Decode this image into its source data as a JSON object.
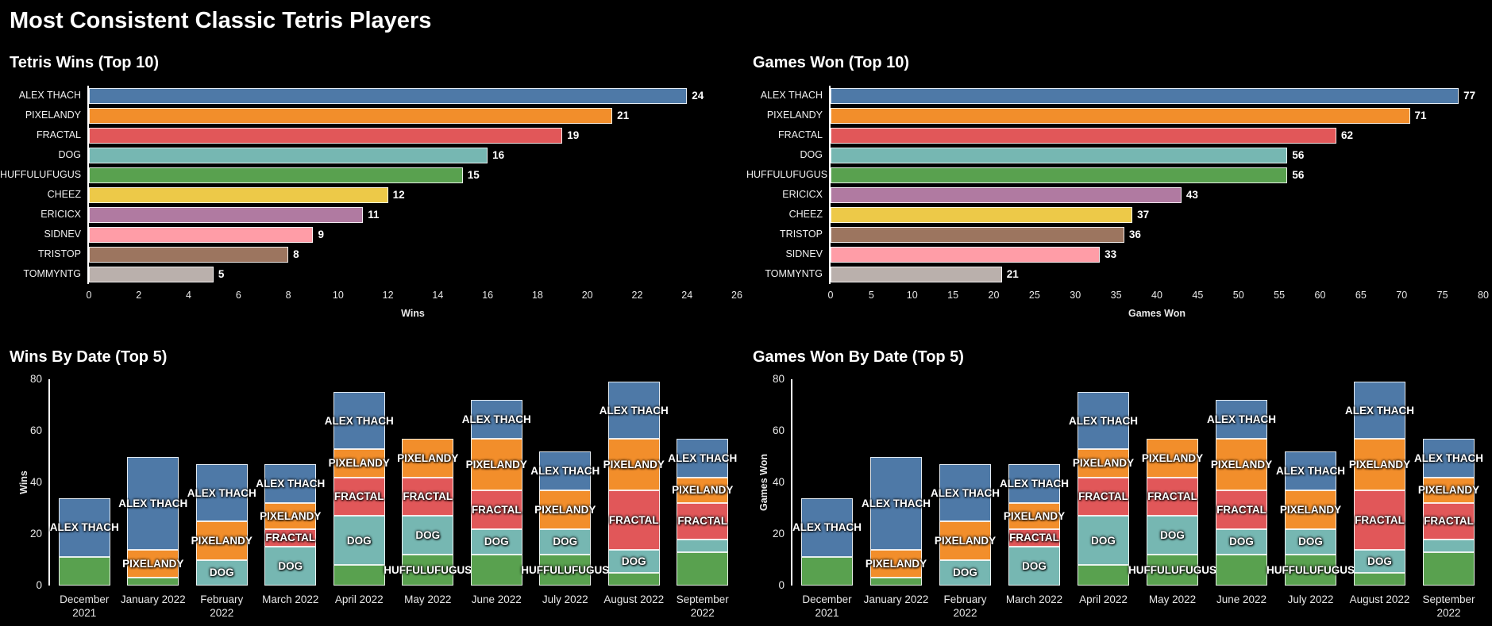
{
  "title": "Most Consistent Classic Tetris Players",
  "colors": {
    "ALEX THACH": "#4e79a7",
    "PIXELANDY": "#f28e2b",
    "FRACTAL": "#e15759",
    "DOG": "#76b7b2",
    "HUFFULUFUGUS": "#59a14f",
    "CHEEZ": "#edc948",
    "ERICICX": "#b07aa1",
    "SIDNEV": "#ff9da7",
    "TRISTOP": "#9c755f",
    "TOMMYNTG": "#bab0ac"
  },
  "chart_data": [
    {
      "id": "tetris-wins-top10",
      "type": "bar",
      "orientation": "horizontal",
      "title": "Tetris Wins (Top 10)",
      "xlabel": "Wins",
      "xlim": [
        0,
        26
      ],
      "xticks": [
        0,
        2,
        4,
        6,
        8,
        10,
        12,
        14,
        16,
        18,
        20,
        22,
        24,
        26
      ],
      "categories": [
        "ALEX THACH",
        "PIXELANDY",
        "FRACTAL",
        "DOG",
        "HUFFULUFUGUS",
        "CHEEZ",
        "ERICICX",
        "SIDNEV",
        "TRISTOP",
        "TOMMYNTG"
      ],
      "values": [
        24,
        21,
        19,
        16,
        15,
        12,
        11,
        9,
        8,
        5
      ]
    },
    {
      "id": "games-won-top10",
      "type": "bar",
      "orientation": "horizontal",
      "title": "Games Won (Top 10)",
      "xlabel": "Games Won",
      "xlim": [
        0,
        80
      ],
      "xticks": [
        0,
        5,
        10,
        15,
        20,
        25,
        30,
        35,
        40,
        45,
        50,
        55,
        60,
        65,
        70,
        75,
        80
      ],
      "categories": [
        "ALEX THACH",
        "PIXELANDY",
        "FRACTAL",
        "DOG",
        "HUFFULUFUGUS",
        "ERICICX",
        "CHEEZ",
        "TRISTOP",
        "SIDNEV",
        "TOMMYNTG"
      ],
      "values": [
        77,
        71,
        62,
        56,
        56,
        43,
        37,
        36,
        33,
        21
      ]
    },
    {
      "id": "wins-by-date-top5",
      "type": "bar",
      "stacked": true,
      "title": "Wins By Date (Top 5)",
      "ylabel": "Wins",
      "ylim": [
        0,
        80
      ],
      "yticks": [
        0,
        20,
        40,
        60,
        80
      ],
      "categories": [
        "December\n2021",
        "January 2022",
        "February 2022",
        "March 2022",
        "April 2022",
        "May 2022",
        "June 2022",
        "July 2022",
        "August 2022",
        "September\n2022"
      ],
      "stacks": [
        [
          {
            "player": "HUFFULUFUGUS",
            "value": 11,
            "label": false
          },
          {
            "player": "ALEX THACH",
            "value": 23,
            "label": true
          }
        ],
        [
          {
            "player": "HUFFULUFUGUS",
            "value": 3,
            "label": false
          },
          {
            "player": "PIXELANDY",
            "value": 11,
            "label": true
          },
          {
            "player": "ALEX THACH",
            "value": 36,
            "label": true
          }
        ],
        [
          {
            "player": "DOG",
            "value": 10,
            "label": true
          },
          {
            "player": "PIXELANDY",
            "value": 15,
            "label": true
          },
          {
            "player": "ALEX THACH",
            "value": 22,
            "label": true
          }
        ],
        [
          {
            "player": "DOG",
            "value": 15,
            "label": true
          },
          {
            "player": "FRACTAL",
            "value": 7,
            "label": true
          },
          {
            "player": "PIXELANDY",
            "value": 10,
            "label": true
          },
          {
            "player": "ALEX THACH",
            "value": 15,
            "label": true
          }
        ],
        [
          {
            "player": "HUFFULUFUGUS",
            "value": 8,
            "label": false
          },
          {
            "player": "DOG",
            "value": 19,
            "label": true
          },
          {
            "player": "FRACTAL",
            "value": 15,
            "label": true
          },
          {
            "player": "PIXELANDY",
            "value": 11,
            "label": true
          },
          {
            "player": "ALEX THACH",
            "value": 22,
            "label": true
          }
        ],
        [
          {
            "player": "HUFFULUFUGUS",
            "value": 12,
            "label": true
          },
          {
            "player": "DOG",
            "value": 15,
            "label": true
          },
          {
            "player": "FRACTAL",
            "value": 15,
            "label": true
          },
          {
            "player": "PIXELANDY",
            "value": 15,
            "label": true
          }
        ],
        [
          {
            "player": "HUFFULUFUGUS",
            "value": 12,
            "label": false
          },
          {
            "player": "DOG",
            "value": 10,
            "label": true
          },
          {
            "player": "FRACTAL",
            "value": 15,
            "label": true
          },
          {
            "player": "PIXELANDY",
            "value": 20,
            "label": true
          },
          {
            "player": "ALEX THACH",
            "value": 15,
            "label": true
          }
        ],
        [
          {
            "player": "HUFFULUFUGUS",
            "value": 12,
            "label": true
          },
          {
            "player": "DOG",
            "value": 10,
            "label": true
          },
          {
            "player": "PIXELANDY",
            "value": 15,
            "label": true
          },
          {
            "player": "ALEX THACH",
            "value": 15,
            "label": true
          }
        ],
        [
          {
            "player": "HUFFULUFUGUS",
            "value": 5,
            "label": false
          },
          {
            "player": "DOG",
            "value": 9,
            "label": true
          },
          {
            "player": "FRACTAL",
            "value": 23,
            "label": true
          },
          {
            "player": "PIXELANDY",
            "value": 20,
            "label": true
          },
          {
            "player": "ALEX THACH",
            "value": 22,
            "label": true
          }
        ],
        [
          {
            "player": "HUFFULUFUGUS",
            "value": 13,
            "label": false
          },
          {
            "player": "DOG",
            "value": 5,
            "label": false
          },
          {
            "player": "FRACTAL",
            "value": 14,
            "label": true
          },
          {
            "player": "PIXELANDY",
            "value": 10,
            "label": true
          },
          {
            "player": "ALEX THACH",
            "value": 15,
            "label": true
          }
        ]
      ]
    },
    {
      "id": "games-won-by-date-top5",
      "type": "bar",
      "stacked": true,
      "title": "Games Won By Date (Top 5)",
      "ylabel": "Games Won",
      "ylim": [
        0,
        80
      ],
      "yticks": [
        0,
        20,
        40,
        60,
        80
      ],
      "categories": [
        "December\n2021",
        "January 2022",
        "February 2022",
        "March 2022",
        "April 2022",
        "May 2022",
        "June 2022",
        "July 2022",
        "August 2022",
        "September\n2022"
      ],
      "stacks": [
        [
          {
            "player": "HUFFULUFUGUS",
            "value": 11,
            "label": false
          },
          {
            "player": "ALEX THACH",
            "value": 23,
            "label": true
          }
        ],
        [
          {
            "player": "HUFFULUFUGUS",
            "value": 3,
            "label": false
          },
          {
            "player": "PIXELANDY",
            "value": 11,
            "label": true
          },
          {
            "player": "ALEX THACH",
            "value": 36,
            "label": true
          }
        ],
        [
          {
            "player": "DOG",
            "value": 10,
            "label": true
          },
          {
            "player": "PIXELANDY",
            "value": 15,
            "label": true
          },
          {
            "player": "ALEX THACH",
            "value": 22,
            "label": true
          }
        ],
        [
          {
            "player": "DOG",
            "value": 15,
            "label": true
          },
          {
            "player": "FRACTAL",
            "value": 7,
            "label": true
          },
          {
            "player": "PIXELANDY",
            "value": 10,
            "label": true
          },
          {
            "player": "ALEX THACH",
            "value": 15,
            "label": true
          }
        ],
        [
          {
            "player": "HUFFULUFUGUS",
            "value": 8,
            "label": false
          },
          {
            "player": "DOG",
            "value": 19,
            "label": true
          },
          {
            "player": "FRACTAL",
            "value": 15,
            "label": true
          },
          {
            "player": "PIXELANDY",
            "value": 11,
            "label": true
          },
          {
            "player": "ALEX THACH",
            "value": 22,
            "label": true
          }
        ],
        [
          {
            "player": "HUFFULUFUGUS",
            "value": 12,
            "label": true
          },
          {
            "player": "DOG",
            "value": 15,
            "label": true
          },
          {
            "player": "FRACTAL",
            "value": 15,
            "label": true
          },
          {
            "player": "PIXELANDY",
            "value": 15,
            "label": true
          }
        ],
        [
          {
            "player": "HUFFULUFUGUS",
            "value": 12,
            "label": false
          },
          {
            "player": "DOG",
            "value": 10,
            "label": true
          },
          {
            "player": "FRACTAL",
            "value": 15,
            "label": true
          },
          {
            "player": "PIXELANDY",
            "value": 20,
            "label": true
          },
          {
            "player": "ALEX THACH",
            "value": 15,
            "label": true
          }
        ],
        [
          {
            "player": "HUFFULUFUGUS",
            "value": 12,
            "label": true
          },
          {
            "player": "DOG",
            "value": 10,
            "label": true
          },
          {
            "player": "PIXELANDY",
            "value": 15,
            "label": true
          },
          {
            "player": "ALEX THACH",
            "value": 15,
            "label": true
          }
        ],
        [
          {
            "player": "HUFFULUFUGUS",
            "value": 5,
            "label": false
          },
          {
            "player": "DOG",
            "value": 9,
            "label": true
          },
          {
            "player": "FRACTAL",
            "value": 23,
            "label": true
          },
          {
            "player": "PIXELANDY",
            "value": 20,
            "label": true
          },
          {
            "player": "ALEX THACH",
            "value": 22,
            "label": true
          }
        ],
        [
          {
            "player": "HUFFULUFUGUS",
            "value": 13,
            "label": false
          },
          {
            "player": "DOG",
            "value": 5,
            "label": false
          },
          {
            "player": "FRACTAL",
            "value": 14,
            "label": true
          },
          {
            "player": "PIXELANDY",
            "value": 10,
            "label": true
          },
          {
            "player": "ALEX THACH",
            "value": 15,
            "label": true
          }
        ]
      ]
    }
  ]
}
